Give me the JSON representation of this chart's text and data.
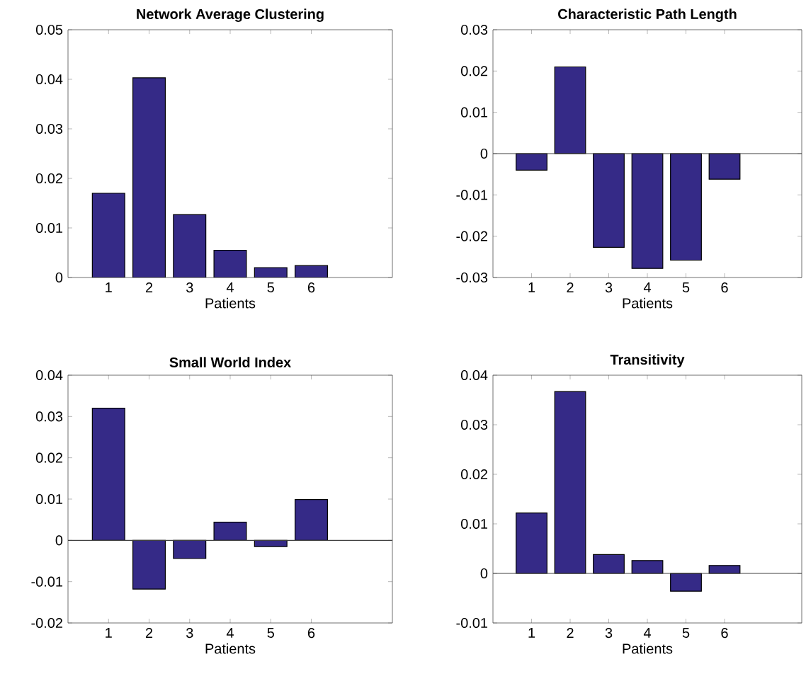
{
  "chart_data": [
    {
      "type": "bar",
      "title": "Network Average Clustering",
      "xlabel": "Patients",
      "x": [
        1,
        2,
        3,
        4,
        5,
        6
      ],
      "values": [
        0.017,
        0.0403,
        0.0127,
        0.0055,
        0.002,
        0.0024
      ],
      "color": "#352a87",
      "xlim": [
        0,
        8
      ],
      "xticks": [
        1,
        2,
        3,
        4,
        5,
        6
      ],
      "ylim": [
        0,
        0.05
      ],
      "yticks": [
        0,
        0.01,
        0.02,
        0.03,
        0.04,
        0.05
      ],
      "grid": false
    },
    {
      "type": "bar",
      "title": "Characteristic Path Length",
      "xlabel": "Patients",
      "x": [
        1,
        2,
        3,
        4,
        5,
        6
      ],
      "values": [
        -0.004,
        0.021,
        -0.0227,
        -0.0278,
        -0.0258,
        -0.0062
      ],
      "color": "#352a87",
      "xlim": [
        0,
        8
      ],
      "xticks": [
        1,
        2,
        3,
        4,
        5,
        6
      ],
      "ylim": [
        -0.03,
        0.03
      ],
      "yticks": [
        -0.03,
        -0.02,
        -0.01,
        0,
        0.01,
        0.02,
        0.03
      ],
      "grid": false,
      "ref_lines": [
        {
          "axis": "y",
          "value": 0
        }
      ]
    },
    {
      "type": "bar",
      "title": "Small World Index",
      "xlabel": "Patients",
      "x": [
        1,
        2,
        3,
        4,
        5,
        6
      ],
      "values": [
        0.032,
        -0.0118,
        -0.0044,
        0.0044,
        -0.0015,
        0.0099
      ],
      "color": "#352a87",
      "xlim": [
        0,
        8
      ],
      "xticks": [
        1,
        2,
        3,
        4,
        5,
        6
      ],
      "ylim": [
        -0.02,
        0.04
      ],
      "yticks": [
        -0.02,
        -0.01,
        0,
        0.01,
        0.02,
        0.03,
        0.04
      ],
      "grid": false,
      "ref_lines": [
        {
          "axis": "y",
          "value": 0
        }
      ]
    },
    {
      "type": "bar",
      "title": "Transitivity",
      "xlabel": "Patients",
      "x": [
        1,
        2,
        3,
        4,
        5,
        6
      ],
      "values": [
        0.0122,
        0.0367,
        0.0038,
        0.0026,
        -0.0036,
        0.0016
      ],
      "color": "#352a87",
      "xlim": [
        0,
        8
      ],
      "xticks": [
        1,
        2,
        3,
        4,
        5,
        6
      ],
      "ylim": [
        -0.01,
        0.04
      ],
      "yticks": [
        -0.01,
        0,
        0.01,
        0.02,
        0.03,
        0.04
      ],
      "grid": false,
      "ref_lines": [
        {
          "axis": "y",
          "value": 0
        }
      ]
    }
  ]
}
